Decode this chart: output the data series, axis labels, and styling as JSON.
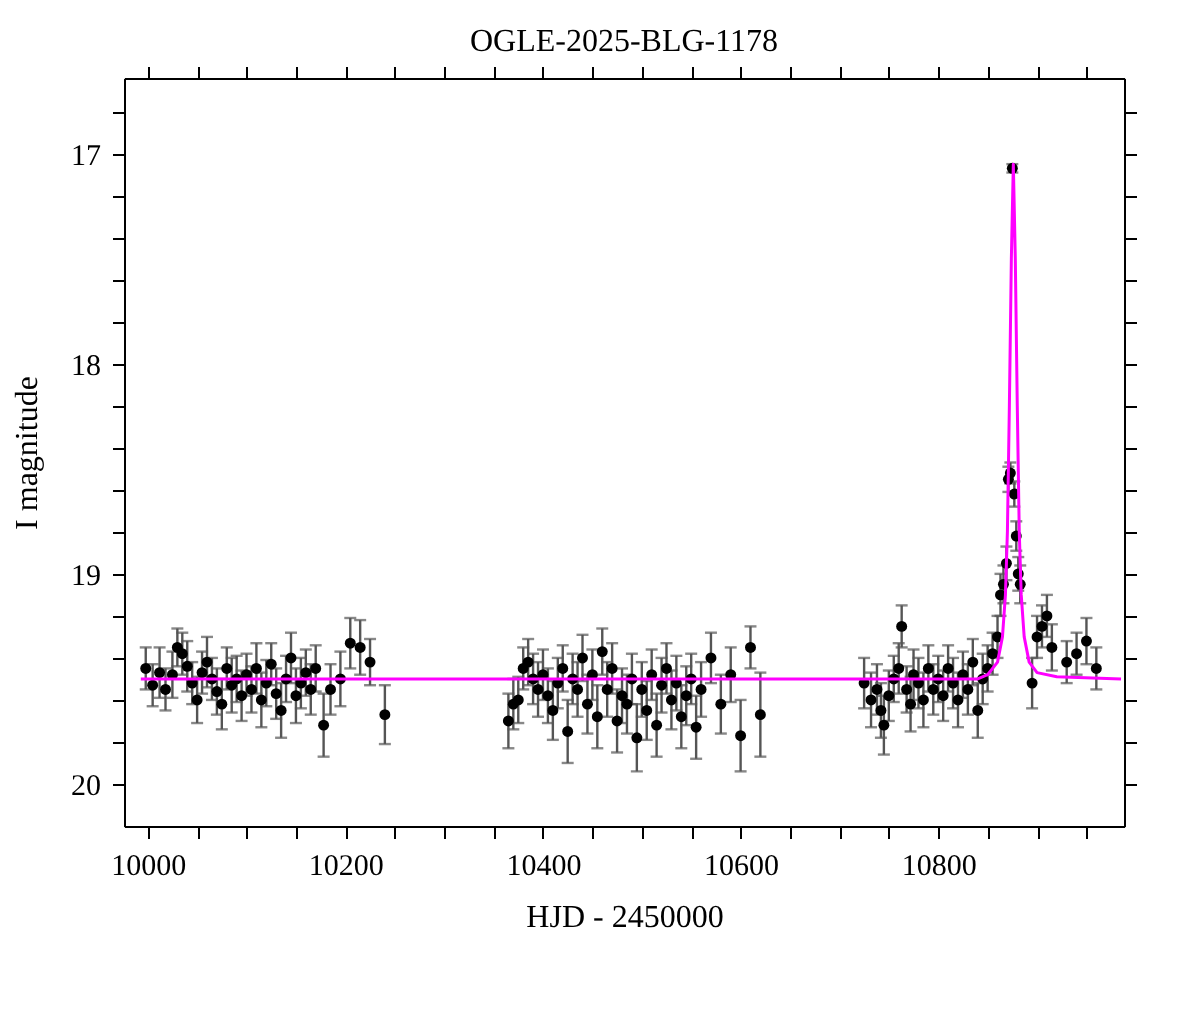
{
  "chart_data": {
    "type": "scatter",
    "title": "OGLE-2025-BLG-1178",
    "xlabel": "HJD - 2450000",
    "ylabel": "I magnitude",
    "xlim": [
      9976,
      10988
    ],
    "ylim": [
      20.2,
      16.64
    ],
    "xticks": [
      10000,
      {
        "value": 10050,
        "label": null
      },
      {
        "value": 10100,
        "label": null
      },
      {
        "value": 10150,
        "label": null
      },
      10200,
      {
        "value": 10250,
        "label": null
      },
      {
        "value": 10300,
        "label": null
      },
      {
        "value": 10350,
        "label": null
      },
      10400,
      {
        "value": 10450,
        "label": null
      },
      {
        "value": 10500,
        "label": null
      },
      {
        "value": 10550,
        "label": null
      },
      10600,
      {
        "value": 10650,
        "label": null
      },
      {
        "value": 10700,
        "label": null
      },
      {
        "value": 10750,
        "label": null
      },
      10800,
      {
        "value": 10850,
        "label": null
      },
      {
        "value": 10900,
        "label": null
      },
      {
        "value": 10950,
        "label": null
      }
    ],
    "yticks": [
      {
        "value": 16.8,
        "label": null
      },
      17,
      {
        "value": 17.2,
        "label": null
      },
      {
        "value": 17.4,
        "label": null
      },
      {
        "value": 17.6,
        "label": null
      },
      {
        "value": 17.8,
        "label": null
      },
      18,
      {
        "value": 18.2,
        "label": null
      },
      {
        "value": 18.4,
        "label": null
      },
      {
        "value": 18.6,
        "label": null
      },
      {
        "value": 18.8,
        "label": null
      },
      19,
      {
        "value": 19.2,
        "label": null
      },
      {
        "value": 19.4,
        "label": null
      },
      {
        "value": 19.6,
        "label": null
      },
      {
        "value": 19.8,
        "label": null
      },
      20
    ],
    "grid": false,
    "legend": false,
    "marker": "circle",
    "series": [
      {
        "type": "scatter",
        "color": "#000000",
        "x": [
          9998,
          10005,
          10012,
          10018,
          10025,
          10030,
          10035,
          10040,
          10045,
          10050,
          10055,
          10060,
          10065,
          10070,
          10075,
          10080,
          10085,
          10090,
          10095,
          10100,
          10105,
          10110,
          10115,
          10120,
          10125,
          10130,
          10135,
          10140,
          10145,
          10150,
          10155,
          10160,
          10165,
          10170,
          10178,
          10185,
          10195,
          10205,
          10215,
          10225,
          10240,
          10365,
          10370,
          10375,
          10380,
          10385,
          10390,
          10395,
          10400,
          10405,
          10410,
          10415,
          10420,
          10425,
          10430,
          10435,
          10440,
          10445,
          10450,
          10455,
          10460,
          10465,
          10470,
          10475,
          10480,
          10485,
          10490,
          10495,
          10500,
          10505,
          10510,
          10515,
          10520,
          10525,
          10530,
          10535,
          10540,
          10545,
          10550,
          10555,
          10560,
          10570,
          10580,
          10590,
          10600,
          10610,
          10620,
          10725,
          10732,
          10738,
          10742,
          10745,
          10750,
          10755,
          10760,
          10763,
          10768,
          10772,
          10775,
          10780,
          10785,
          10790,
          10795,
          10800,
          10805,
          10810,
          10815,
          10820,
          10825,
          10830,
          10835,
          10840,
          10845,
          10850,
          10855,
          10860,
          10863,
          10866,
          10869,
          10871,
          10873,
          10875,
          10877,
          10879,
          10881,
          10883,
          10895,
          10900,
          10905,
          10910,
          10915,
          10930,
          10940,
          10950,
          10960
        ],
        "values": [
          19.45,
          19.53,
          19.47,
          19.55,
          19.48,
          19.35,
          19.38,
          19.44,
          19.52,
          19.6,
          19.47,
          19.42,
          19.5,
          19.56,
          19.62,
          19.45,
          19.53,
          19.5,
          19.58,
          19.48,
          19.55,
          19.45,
          19.6,
          19.52,
          19.43,
          19.57,
          19.65,
          19.5,
          19.4,
          19.58,
          19.52,
          19.47,
          19.55,
          19.45,
          19.72,
          19.55,
          19.5,
          19.33,
          19.35,
          19.42,
          19.67,
          19.7,
          19.62,
          19.6,
          19.45,
          19.42,
          19.5,
          19.55,
          19.48,
          19.58,
          19.65,
          19.52,
          19.45,
          19.75,
          19.5,
          19.55,
          19.4,
          19.62,
          19.48,
          19.68,
          19.37,
          19.55,
          19.45,
          19.7,
          19.58,
          19.62,
          19.5,
          19.78,
          19.55,
          19.65,
          19.48,
          19.72,
          19.53,
          19.45,
          19.6,
          19.52,
          19.68,
          19.58,
          19.5,
          19.73,
          19.55,
          19.4,
          19.62,
          19.48,
          19.77,
          19.35,
          19.67,
          19.52,
          19.6,
          19.55,
          19.65,
          19.72,
          19.58,
          19.5,
          19.45,
          19.25,
          19.55,
          19.62,
          19.48,
          19.52,
          19.6,
          19.45,
          19.55,
          19.5,
          19.58,
          19.45,
          19.52,
          19.6,
          19.48,
          19.55,
          19.42,
          19.65,
          19.5,
          19.45,
          19.38,
          19.3,
          19.1,
          19.05,
          18.95,
          18.55,
          18.52,
          17.07,
          18.62,
          18.82,
          19.0,
          19.05,
          19.52,
          19.3,
          19.25,
          19.2,
          19.35,
          19.42,
          19.38,
          19.32,
          19.45
        ],
        "errors": [
          0.1,
          0.1,
          0.12,
          0.1,
          0.11,
          0.09,
          0.1,
          0.12,
          0.1,
          0.11,
          0.1,
          0.12,
          0.1,
          0.11,
          0.12,
          0.1,
          0.13,
          0.11,
          0.12,
          0.1,
          0.11,
          0.12,
          0.13,
          0.11,
          0.1,
          0.12,
          0.13,
          0.11,
          0.12,
          0.13,
          0.12,
          0.11,
          0.12,
          0.11,
          0.15,
          0.12,
          0.13,
          0.12,
          0.13,
          0.11,
          0.14,
          0.13,
          0.12,
          0.11,
          0.1,
          0.11,
          0.12,
          0.13,
          0.12,
          0.13,
          0.14,
          0.12,
          0.11,
          0.15,
          0.12,
          0.13,
          0.11,
          0.14,
          0.12,
          0.15,
          0.11,
          0.13,
          0.12,
          0.15,
          0.13,
          0.14,
          0.12,
          0.16,
          0.13,
          0.14,
          0.12,
          0.15,
          0.13,
          0.12,
          0.14,
          0.13,
          0.15,
          0.14,
          0.12,
          0.15,
          0.13,
          0.12,
          0.14,
          0.13,
          0.17,
          0.1,
          0.2,
          0.12,
          0.13,
          0.12,
          0.13,
          0.14,
          0.12,
          0.11,
          0.12,
          0.1,
          0.11,
          0.13,
          0.12,
          0.12,
          0.13,
          0.11,
          0.12,
          0.11,
          0.12,
          0.11,
          0.12,
          0.13,
          0.11,
          0.12,
          0.11,
          0.13,
          0.12,
          0.11,
          0.1,
          0.1,
          0.1,
          0.09,
          0.08,
          0.06,
          0.05,
          0.02,
          0.06,
          0.07,
          0.08,
          0.09,
          0.12,
          0.1,
          0.1,
          0.1,
          0.11,
          0.1,
          0.1,
          0.11,
          0.1
        ]
      },
      {
        "type": "line",
        "color": "#ff00ff",
        "marker": "none",
        "x": [
          9993,
          10840,
          10850,
          10860,
          10865,
          10868,
          10870,
          10872,
          10874,
          10876,
          10878,
          10880,
          10882,
          10884,
          10887,
          10892,
          10900,
          10920,
          10985
        ],
        "values": [
          19.5,
          19.5,
          19.48,
          19.42,
          19.3,
          19.1,
          18.8,
          18.2,
          17.5,
          17.05,
          17.5,
          18.2,
          18.8,
          19.1,
          19.3,
          19.42,
          19.47,
          19.49,
          19.5
        ]
      }
    ]
  }
}
